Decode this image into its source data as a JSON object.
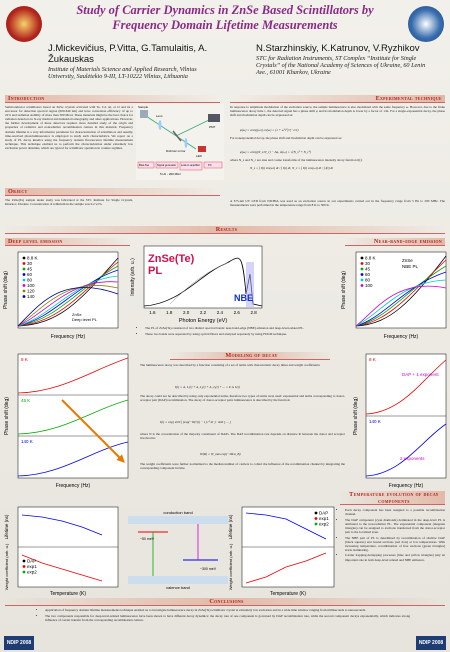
{
  "header": {
    "title": "Study of Carrier Dynamics in ZnSe Based Scintillators by Frequency Domain Lifetime Measurements",
    "authors_left": "J.Mickevičius, P.Vitta, G.Tamulaitis, A. Žukauskas",
    "affiliation_left": "Institute of Materials Science and Applied Research, Vilnius University, Saulėtekio 9-III, LT-10222 Vilnius, Lithuania",
    "authors_right": "N.Starzhinskiy, K.Katrunov, V.Ryzhikov",
    "affiliation_right": "STC for Radiation Instruments, ST Complex “Institute for Single Crystals” of the National Academy of Sciences of Ukraine, 60 Lenin Ave., 61001 Kharkov, Ukraine"
  },
  "introduction": {
    "title": "Introduction",
    "text": "Semiconductor scintillators based on ZnSe crystals activated with Te, Cd, Al, or O and its a successor for detection spectral region (600-640 nm) and have conversion efficiency of up to 22% and radiation stability of more than 500 Mrad. These materials might be the best choice for radiation detectors in X-ray medical and industrial tomography and other applications. However, the further development of these detectors requires more detailed study of the origin and properties of radiative and nonradiative recombination centres in this material. Frequency domain lifetime is a very informative parameter for characterization of scintillators and usually, time-resolved photoluminescence is employed to study such characteristics. We report on a study of PL decay kinetics using the frequency domain fluorescence lifetime measurement technique. This technique enabled us to perform the characterization under extremely low excitation power densities, which are typical for scintillator operation in counter regimes."
  },
  "object": {
    "title": "Object",
    "text": "The ZnSe(Te) sample under study was fabricated at the STC Institute for Single Crystals, Kharkov, Ukraine. Concentration of tellurium in the sample was 0.2 wt%."
  },
  "experimental": {
    "title": "Experimental technique",
    "text1": "In response to amplitude modulation of the excitation source, the sample luminescence is also modulated with the same frequency ω. However, due to the finite luminescence decay time τ, the detected signal has a phase shift φ and its modulation depth is lower by a factor of 1/m. For a single-exponential decay, the phase shift and modulation depth can be expressed as:",
    "equation1": "φ(ω) = arctg(ωτ),   m(ω) = (1 + ω²τ²)^(−1/2)",
    "text2": "For nonexponential decay, the phase shift and modulation depth can be expressed as:",
    "equation2": "φ(ω) = arctg(N_s/N_c) − Δφ,   m(ω) = √(N_s² + N_c²)",
    "text3": "where N_s and N_c are sine and cosine transforms of the luminescence intensity decay function I(t):",
    "equation3": "N_s = ∫ I(t) sin(ωt) dt / ∫ I(t) dt,   N_c = ∫ I(t) cos(ωt) dt / ∫ I(t) dt",
    "text4": "A 375-nm UV LED from NICHIA was used as an excitation source in our experiments carried out in the frequency range from 5 Hz to 200 MHz. The measurements were performed in the temperature range from 8 K to 300 K.",
    "diagram": {
      "sample": "Sample",
      "lens": "Lens",
      "dichroic_mirror": "Dichroic mirror",
      "led": "LED",
      "pmt": "PMT",
      "bias_tee": "Bias-Tee",
      "signal_generator": "Signal generator",
      "lock_in": "Lock-in amplifier",
      "pc": "PC",
      "range": "5 Hz - 200 MHz"
    }
  },
  "results": {
    "title": "Results",
    "bullets": [
      "The PL of ZnSe(Te) consisted of two distinct spectral bands: near-band-edge (NBE) emission and deep-level-related PL.",
      "These two bands were separated by using optical filters and analyzed separately by using FDLM technique."
    ]
  },
  "deep_level": {
    "title": "Deep level emission",
    "plot": {
      "legend": [
        "8.8 K",
        "30",
        "45",
        "60",
        "80",
        "100",
        "120",
        "140"
      ],
      "annotation_1": "ZnSe",
      "annotation_2": "Deep level PL",
      "x_label": "Frequency (Hz)",
      "y_label": "Phase shift (deg)"
    }
  },
  "spectrum": {
    "label_line1": "ZnSe(Te)",
    "label_line2": "PL",
    "nbe_label": "NBE",
    "xticks": [
      "1.6",
      "1.8",
      "2.0",
      "2.2",
      "2.4",
      "2.6",
      "2.8"
    ],
    "x_label": "Photon Energy (eV)",
    "y_label": "Intensity (arb. u.)"
  },
  "near_band_edge": {
    "title": "Near-band-edge emission",
    "plot": {
      "legend": [
        "8.8 K",
        "30",
        "45",
        "60",
        "80",
        "100"
      ],
      "annotation_1": "ZnSe",
      "annotation_2": "NBE PL",
      "x_label": "Frequency (Hz)",
      "y_label": "Phase shift (deg)"
    }
  },
  "modeling": {
    "title": "Modeling of decay",
    "text1": "The luminescence decay was described by a function consisting of a set of terms with characteristic decay times and weight coefficients:",
    "equation1": "I(t) = A₁ I₁(t) + A₂ I₂(t) + A₃ I₃(t) + ... = Σ Aᵢ Iᵢ(t)",
    "text2": "The decay could not be described by using only exponential terms, therefore two types of terms were used: exponential and terms corresponding to donor-acceptor pair (DAP) recombination. The decay of donor-acceptor pairs luminescence is described by the function:",
    "equation2": "I(t) = exp[ 4πN ∫ (exp(−W(r)t) − 1) r² dr ] · d/dt [ ... ]",
    "text3": "where N is the concentration of the majority constituent of DAPs. The DAP recombination rate depends on distance R between the donor and acceptor involved in:",
    "equation3": "W(R) = W_max exp(−2R/a_B)",
    "text4": "The weight coefficients were further normalized to the median number of carriers to collect the influence of the recombination channel by integrating the corresponding component in time.",
    "left_plot": {
      "labels": [
        "8 K",
        "45 K",
        "140 K"
      ],
      "x_label": "Frequency (Hz)",
      "y_label": "Phase shift (deg)"
    },
    "right_plot": {
      "labels": [
        "8 K",
        "DAP + 1 exponent",
        "140 K",
        "2 exponents"
      ],
      "x_label": "Frequency (Hz)",
      "y_label": "Phase shift (deg)"
    }
  },
  "temperature": {
    "title": "Temperature evolution of decay components",
    "bullets": [
      "Each decay component has been assigned to a possible recombination channel.",
      "The DAP component (cyan diamonds) dominated in the deep-level PL is attributed to the non-radiative PL. The exponential component (magenta triangles) can be assigned to excitons transferred from the donor-acceptor pair to the localized state.",
      "The NBE part of PL is determined by recombination of shallow DAP (black squares) and bound excitons (red dots) at low temperatures. With increasing temperature, recombination of free excitons (green triangles) starts dominating.",
      "Carrier trapping-detrapping processes (blue and yellow triangles) play an important role in both deep-level related and NBE emission."
    ]
  },
  "bottom": {
    "x_label": "Temperature (K)",
    "y_label_top": "Lifetime (ns)",
    "y_label_bottom": "Weight coefficient (arb. u.)",
    "legend": [
      "DAP",
      "exp1",
      "exp2"
    ],
    "band": {
      "conduction": "conduction band",
      "valence": "valence band",
      "shallow": "~50 meV",
      "deep": "~300 meV"
    }
  },
  "conclusions": {
    "title": "Conclusions",
    "bullets": [
      "Application of frequency domain lifetime measurements technique enabled us to investigate luminescence decay in ZnSe(Te) scintillator crystal at extremely low excitation and in a wide time window ranging from milliseconds to nanoseconds.",
      "The two components responsible for deep-level-related luminescence have been shown to have different decay dynamics: the decay rate of one component is governed by DAP recombination rate, while the second component decays exponentially, which indicates strong influence of carrier transfer from the corresponding recombination centres."
    ]
  },
  "footer": {
    "logo_left": "NDIP 2008",
    "logo_right": "NDIP 2008"
  }
}
